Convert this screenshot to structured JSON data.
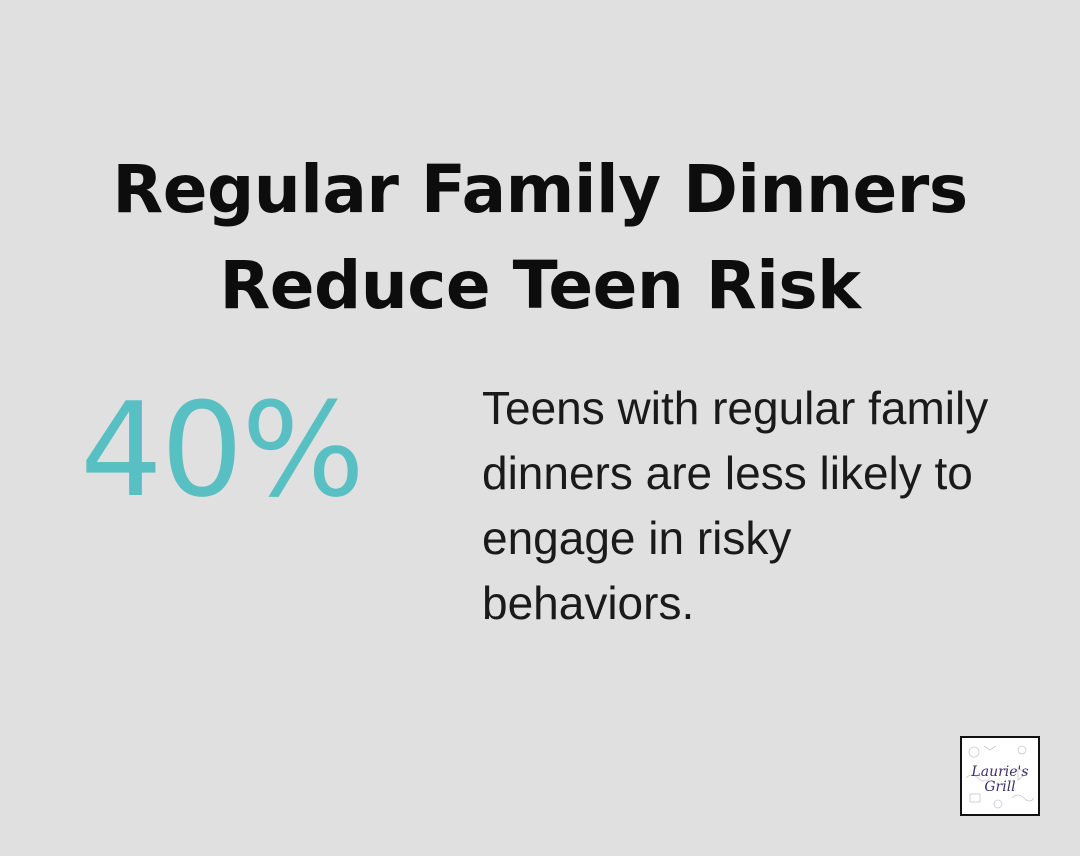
{
  "title": {
    "line1": "Regular Family Dinners",
    "line2": "Reduce Teen Risk"
  },
  "stat": {
    "value": "40%",
    "description": "Teens with regular family dinners are less likely to engage in risky behaviors."
  },
  "logo": {
    "line1": "Laurie's",
    "line2": "Grill"
  },
  "colors": {
    "background": "#dfe0df",
    "accent": "#58bfc2",
    "text": "#111111",
    "logo_text": "#3c2f6b"
  }
}
